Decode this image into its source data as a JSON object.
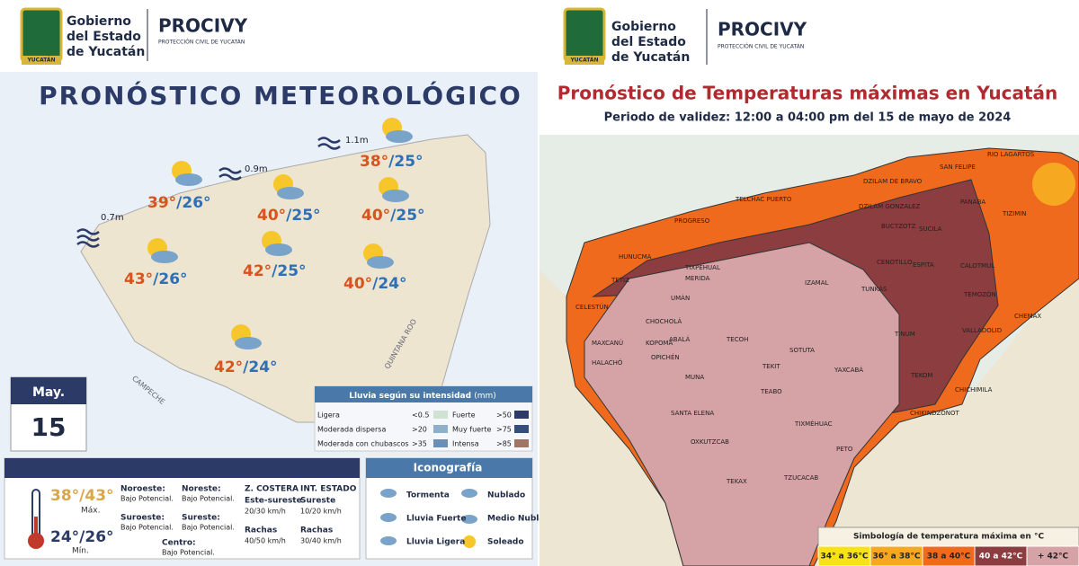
{
  "left": {
    "header": {
      "gov": [
        "Gobierno",
        "del Estado",
        "de Yucatán"
      ],
      "badge": "YUCATÁN",
      "org": "PROCIVY",
      "org_sub": "PROTECCIÓN CIVIL DE YUCATÁN"
    },
    "title": "PRONÓSTICO METEOROLÓGICO",
    "waves": [
      "0.7m",
      "0.9m",
      "1.1m"
    ],
    "temps": [
      {
        "max": "38°",
        "min": "/25°"
      },
      {
        "max": "39°",
        "min": "/26°"
      },
      {
        "max": "40°",
        "min": "/25°"
      },
      {
        "max": "40°",
        "min": "/25°"
      },
      {
        "max": "43°",
        "min": "/26°"
      },
      {
        "max": "42°",
        "min": "/25°"
      },
      {
        "max": "40°",
        "min": "/24°"
      },
      {
        "max": "42°",
        "min": "/24°"
      }
    ],
    "regions": [
      "CAMPECHE",
      "QUINTANA ROO"
    ],
    "date": {
      "month": "May.",
      "day": "15"
    },
    "rain": {
      "title": "Lluvia según su intensidad",
      "unit": "(mm)",
      "rows": [
        [
          "Ligera",
          "<0.5"
        ],
        [
          "Moderada dispersa",
          ">20"
        ],
        [
          "Moderada con chubascos",
          ">35"
        ],
        [
          "Fuerte",
          ">50"
        ],
        [
          "Muy fuerte",
          ">75"
        ],
        [
          "Intensa",
          ">85"
        ]
      ]
    },
    "panel": {
      "max": "38°/43°",
      "max_label": "Máx.",
      "min": "24°/26°",
      "min_label": "Mín.",
      "winds": [
        [
          "Noroeste:",
          "Bajo Potencial."
        ],
        [
          "Noreste:",
          "Bajo Potencial."
        ],
        [
          "Suroeste:",
          "Bajo Potencial."
        ],
        [
          "Sureste:",
          "Bajo Potencial."
        ],
        [
          "Centro:",
          "Bajo Potencial."
        ]
      ],
      "coast": {
        "title": "Z. COSTERA",
        "dir": "Este-sureste",
        "speed": "20/30 km/h",
        "gust_label": "Rachas",
        "gust": "40/50 km/h"
      },
      "inland": {
        "title": "INT. ESTADO",
        "dir": "Sureste",
        "speed": "10/20 km/h",
        "gust_label": "Rachas",
        "gust": "30/40 km/h"
      }
    },
    "icons": {
      "title": "Iconografía",
      "items": [
        "Tormenta",
        "Nublado",
        "Lluvia Fuerte",
        "Medio Nublado",
        "Lluvia Ligera",
        "Soleado"
      ]
    }
  },
  "right": {
    "header": {
      "gov": [
        "Gobierno",
        "del Estado",
        "de Yucatán"
      ],
      "badge": "YUCATÁN",
      "org": "PROCIVY",
      "org_sub": "PROTECCIÓN CIVIL DE YUCATÁN"
    },
    "title": "Pronóstico de Temperaturas máximas en Yucatán",
    "subtitle": "Periodo de validez: 12:00 a 04:00 pm del 15 de mayo de 2024",
    "municipalities": [
      "RIO LAGARTOS",
      "SAN FELIPE",
      "TELCHAC PUERTO",
      "DZILAM DE BRAVO",
      "PROGRESO",
      "DZILAM GONZALEZ",
      "TIZIMIN",
      "PANABA",
      "BUCTZOTZ",
      "SUCILA",
      "HUNUCMA",
      "CENOTILLO",
      "ESPITA",
      "CALOTMUL",
      "TETIZ",
      "TIXPÉHUAL",
      "MERIDA",
      "IZAMAL",
      "TEMOZÓN",
      "CELESTÚN",
      "UMÁN",
      "TUNKÁS",
      "CHEMAX",
      "CHOCHOLÁ",
      "VALLADOLID",
      "ABALÁ",
      "TECOH",
      "TINUM",
      "MAXCANÚ",
      "KOPOMÁ",
      "SOTUTA",
      "YAXCABÁ",
      "HALACHÓ",
      "OPICHÉN",
      "TEKIT",
      "MUNA",
      "TEKOM",
      "CHICHIMILA",
      "TEABO",
      "SANTA ELENA",
      "TIXMÉHUAC",
      "CHIKINDZONOT",
      "OXKUTZCAB",
      "PETO",
      "TEKAX",
      "TZUCACAB"
    ],
    "legend": {
      "title": "Simbología de temperatura máxima en °C",
      "items": [
        {
          "label": "34° a 36°C",
          "color": "#f7e21a"
        },
        {
          "label": "36° a 38°C",
          "color": "#f6a821"
        },
        {
          "label": "38 a 40°C",
          "color": "#ef6a1c"
        },
        {
          "label": "40 a 42°C",
          "color": "#8b3d3f"
        },
        {
          "label": "+ 42°C",
          "color": "#d5a2a6"
        }
      ]
    }
  }
}
